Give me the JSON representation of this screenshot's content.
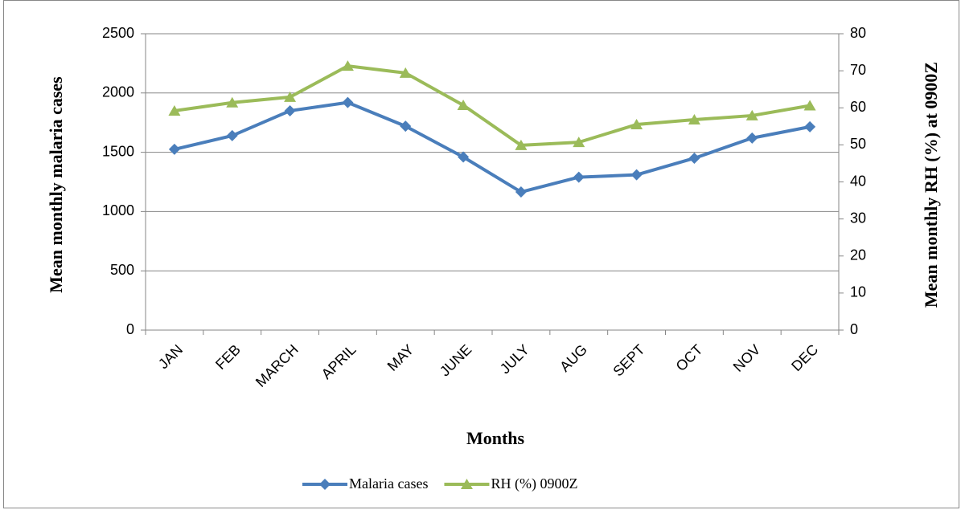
{
  "chart_data": {
    "type": "line",
    "x_label": "Months",
    "y_label": "Mean monthly malaria cases",
    "y2_label": "Mean monthly  RH (%) at 0900Z",
    "categories": [
      "JAN",
      "FEB",
      "MARCH",
      "APRIL",
      "MAY",
      "JUNE",
      "JULY",
      "AUG",
      "SEPT",
      "OCT",
      "NOV",
      "DEC"
    ],
    "series": [
      {
        "name": "Malaria cases",
        "color": "#4a7ebb",
        "marker": "diamond",
        "values": [
          1525,
          1640,
          1850,
          1920,
          1720,
          1460,
          1165,
          1290,
          1310,
          1450,
          1620,
          1715
        ]
      },
      {
        "name": "RH (%) 0900Z",
        "color": "#9bbb59",
        "marker": "triangle",
        "axis": "y2",
        "values": [
          59.2,
          61.4,
          62.9,
          71.3,
          69.4,
          60.7,
          49.9,
          50.7,
          55.5,
          56.8,
          57.9,
          60.6
        ]
      }
    ],
    "ylim": [
      0,
      2500
    ],
    "yticks": [
      0,
      500,
      1000,
      1500,
      2000,
      2500
    ],
    "y2lim": [
      0,
      80
    ],
    "y2ticks": [
      0,
      10,
      20,
      30,
      40,
      50,
      60,
      70,
      80
    ],
    "grid": true,
    "legend": "bottom"
  }
}
